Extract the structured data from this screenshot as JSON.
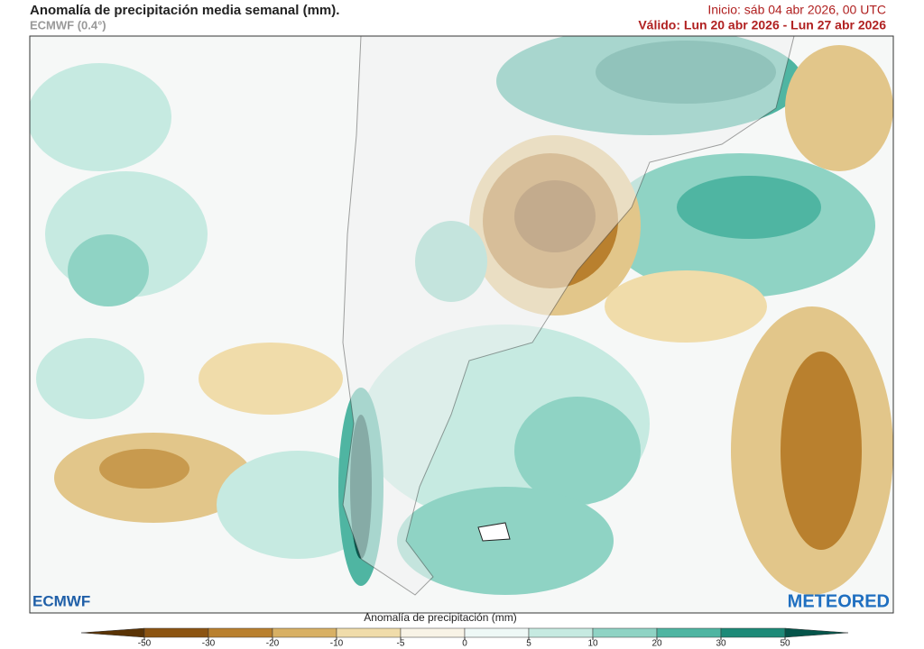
{
  "header": {
    "title": "Anomalía de precipitación media semanal (mm).",
    "subtitle": "ECMWF (0.4°)",
    "init": "Inicio:  sáb 04 abr 2026, 00 UTC",
    "valid": "Válido: Lun 20 abr 2026 - Lun 27 abr 2026"
  },
  "logos": {
    "left": "ECMWF",
    "right": "METEORED"
  },
  "colorbar": {
    "title": "Anomalía de precipitación (mm)",
    "ticks": [
      -50,
      -30,
      -20,
      -10,
      -5,
      0,
      5,
      10,
      20,
      30,
      50
    ],
    "colors": [
      "#5a3305",
      "#8c5412",
      "#b9802e",
      "#d8b064",
      "#f0dcaa",
      "#f8f3e6",
      "#eef8f6",
      "#c6eae1",
      "#8fd3c4",
      "#4fb5a2",
      "#1d8a78",
      "#05544a"
    ]
  }
}
